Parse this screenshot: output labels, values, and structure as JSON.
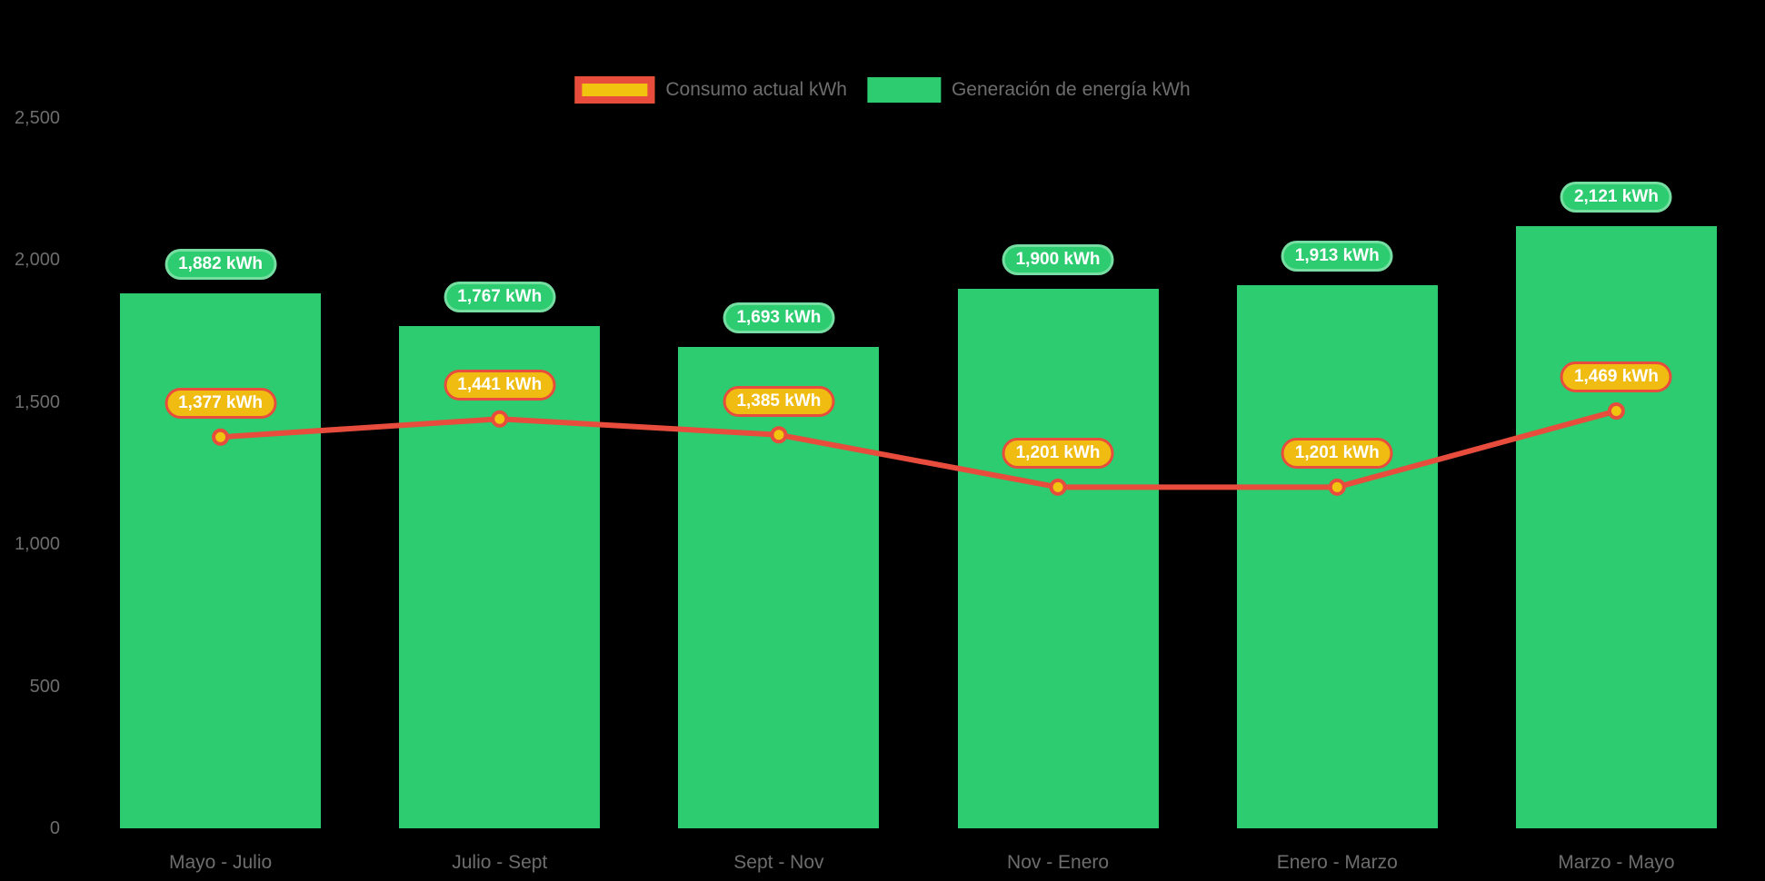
{
  "colors": {
    "background": "#000000",
    "bar": "#2ecc71",
    "line": "#e74c3c",
    "point_fill": "#f1c40f",
    "pill_bar_bg": "#2ecc71",
    "pill_line_bg": "#f0bc11",
    "pill_line_border": "#e74c3c",
    "axis_text": "#6d6d6d",
    "pill_text": "#ffffff"
  },
  "legend": {
    "position": "top",
    "items": [
      {
        "id": "consumo",
        "label": "Consumo actual kWh"
      },
      {
        "id": "generacion",
        "label": "Generación de energía kWh"
      }
    ]
  },
  "chart_data": {
    "type": "combo",
    "title": "",
    "categories": [
      "Mayo - Julio",
      "Julio - Sept",
      "Sept - Nov",
      "Nov - Enero",
      "Enero - Marzo",
      "Marzo - Mayo"
    ],
    "series": [
      {
        "name": "Consumo actual kWh",
        "type": "line",
        "color": "#e74c3c",
        "point_fill": "#f1c40f",
        "values": [
          1377,
          1441,
          1385,
          1201,
          1201,
          1469
        ],
        "data_labels": [
          "1,377 kWh",
          "1,441 kWh",
          "1,385 kWh",
          "1,201 kWh",
          "1,201 kWh",
          "1,469 kWh"
        ]
      },
      {
        "name": "Generación de energía kWh",
        "type": "bar",
        "color": "#2ecc71",
        "values": [
          1882,
          1767,
          1693,
          1900,
          1913,
          2121
        ],
        "data_labels": [
          "1,882 kWh",
          "1,767 kWh",
          "1,693 kWh",
          "1,900 kWh",
          "1,913 kWh",
          "2,121 kWh"
        ]
      }
    ],
    "y_axis": {
      "range": [
        0,
        2500
      ],
      "ticks": [
        {
          "label": "0",
          "value": 0
        },
        {
          "label": "500",
          "value": 500
        },
        {
          "label": "1,000",
          "value": 1000
        },
        {
          "label": "1,500",
          "value": 1500
        },
        {
          "label": "2,000",
          "value": 2000
        },
        {
          "label": "2,500",
          "value": 2500
        }
      ]
    },
    "grid": false,
    "legend_position": "top",
    "units": "kWh"
  }
}
